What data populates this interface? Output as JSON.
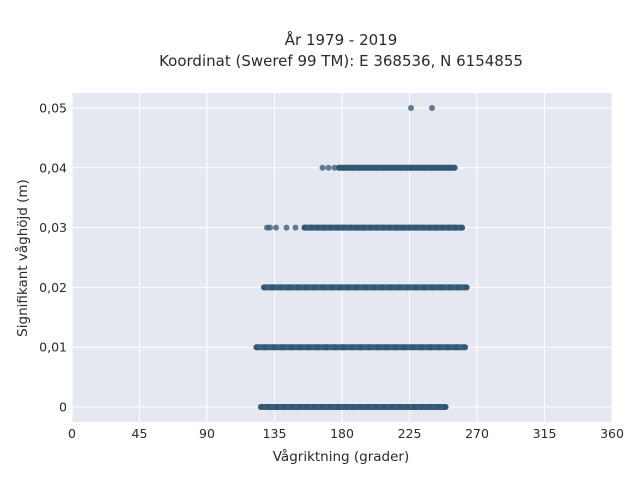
{
  "chart_data": {
    "type": "scatter",
    "title": "År 1979 - 2019",
    "subtitle": "Koordinat (Sweref 99 TM): E 368536, N 6154855",
    "xlabel": "Vågriktning (grader)",
    "ylabel": "Signifikant våghöjd (m)",
    "xlim": [
      0,
      360
    ],
    "ylim": [
      -0.0025,
      0.0525
    ],
    "xticks": [
      0,
      45,
      90,
      135,
      180,
      225,
      270,
      315,
      360
    ],
    "xtick_labels": [
      "0",
      "45",
      "90",
      "135",
      "180",
      "225",
      "270",
      "315",
      "360"
    ],
    "yticks": [
      0,
      0.01,
      0.02,
      0.03,
      0.04,
      0.05
    ],
    "ytick_labels": [
      "0",
      "0,01",
      "0,02",
      "0,03",
      "0,04",
      "0,05"
    ],
    "grid": true,
    "background_color": "#e5e8f0",
    "marker_color": "#2e5670",
    "series": [
      {
        "bands": [
          {
            "y": 0.0,
            "x_range": [
              126,
              249
            ]
          },
          {
            "y": 0.01,
            "x_range": [
              123,
              262
            ]
          },
          {
            "y": 0.02,
            "x_range": [
              128,
              263
            ]
          },
          {
            "y": 0.03,
            "x_range": [
              155,
              260
            ]
          },
          {
            "y": 0.04,
            "x_range": [
              178,
              255
            ]
          }
        ],
        "points": [
          {
            "x": 226,
            "y": 0.05
          },
          {
            "x": 240,
            "y": 0.05
          },
          {
            "x": 130,
            "y": 0.03
          },
          {
            "x": 132,
            "y": 0.03
          },
          {
            "x": 136,
            "y": 0.03
          },
          {
            "x": 143,
            "y": 0.03
          },
          {
            "x": 149,
            "y": 0.03
          },
          {
            "x": 167,
            "y": 0.04
          },
          {
            "x": 171,
            "y": 0.04
          },
          {
            "x": 175,
            "y": 0.04
          }
        ]
      }
    ]
  }
}
